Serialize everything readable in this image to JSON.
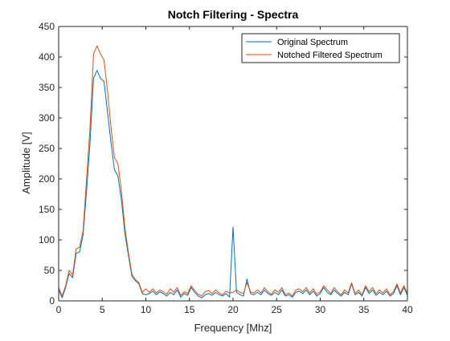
{
  "chart_data": {
    "type": "line",
    "title": "Notch Filtering - Spectra",
    "xlabel": "Frequency [Mhz]",
    "ylabel": "Amplitude [V]",
    "xlim": [
      0,
      40
    ],
    "ylim": [
      0,
      450
    ],
    "xticks": [
      0,
      5,
      10,
      15,
      20,
      25,
      30,
      35,
      40
    ],
    "yticks": [
      0,
      50,
      100,
      150,
      200,
      250,
      300,
      350,
      400,
      450
    ],
    "xtick_labels": [
      "0",
      "5",
      "10",
      "15",
      "20",
      "25",
      "30",
      "35",
      "40"
    ],
    "ytick_labels": [
      "0",
      "50",
      "100",
      "150",
      "200",
      "250",
      "300",
      "350",
      "400",
      "450"
    ],
    "grid": false,
    "legend_position": "top-right",
    "series": [
      {
        "name": "Original Spectrum",
        "color": "#0072BD",
        "x": [
          0,
          0.4,
          0.8,
          1.2,
          1.6,
          2.0,
          2.4,
          2.8,
          3.2,
          3.6,
          4.0,
          4.4,
          4.8,
          5.2,
          5.6,
          6.0,
          6.4,
          6.8,
          7.2,
          7.6,
          8.0,
          8.4,
          8.8,
          9.2,
          9.6,
          10.0,
          10.4,
          10.8,
          11.2,
          11.6,
          12.0,
          12.4,
          12.8,
          13.2,
          13.6,
          14.0,
          14.4,
          14.8,
          15.2,
          15.6,
          16.0,
          16.4,
          16.8,
          17.2,
          17.6,
          18.0,
          18.4,
          18.8,
          19.2,
          19.6,
          20.0,
          20.4,
          20.8,
          21.2,
          21.6,
          22.0,
          22.4,
          22.8,
          23.2,
          23.6,
          24.0,
          24.4,
          24.8,
          25.2,
          25.6,
          26.0,
          26.4,
          26.8,
          27.2,
          27.6,
          28.0,
          28.4,
          28.8,
          29.2,
          29.6,
          30.0,
          30.4,
          30.8,
          31.2,
          31.6,
          32.0,
          32.4,
          32.8,
          33.2,
          33.6,
          34.0,
          34.4,
          34.8,
          35.2,
          35.6,
          36.0,
          36.4,
          36.8,
          37.2,
          37.6,
          38.0,
          38.4,
          38.8,
          39.2,
          39.6,
          40.0
        ],
        "y": [
          18,
          5,
          22,
          45,
          38,
          78,
          80,
          108,
          180,
          260,
          365,
          378,
          365,
          360,
          310,
          260,
          215,
          205,
          165,
          110,
          75,
          40,
          33,
          28,
          12,
          10,
          12,
          16,
          10,
          15,
          12,
          8,
          14,
          10,
          18,
          6,
          12,
          9,
          22,
          14,
          8,
          5,
          10,
          12,
          9,
          14,
          10,
          8,
          12,
          6,
          121,
          14,
          10,
          8,
          36,
          12,
          10,
          14,
          10,
          18,
          12,
          9,
          14,
          10,
          18,
          8,
          10,
          6,
          14,
          16,
          12,
          18,
          10,
          16,
          8,
          12,
          22,
          14,
          10,
          18,
          12,
          8,
          14,
          10,
          28,
          10,
          14,
          8,
          22,
          12,
          18,
          9,
          14,
          10,
          16,
          8,
          12,
          25,
          10,
          22,
          9
        ]
      },
      {
        "name": "Notched Filtered Spectrum",
        "color": "#D95319",
        "x": [
          0,
          0.4,
          0.8,
          1.2,
          1.6,
          2.0,
          2.4,
          2.8,
          3.2,
          3.6,
          4.0,
          4.4,
          4.8,
          5.2,
          5.6,
          6.0,
          6.4,
          6.8,
          7.2,
          7.6,
          8.0,
          8.4,
          8.8,
          9.2,
          9.6,
          10.0,
          10.4,
          10.8,
          11.2,
          11.6,
          12.0,
          12.4,
          12.8,
          13.2,
          13.6,
          14.0,
          14.4,
          14.8,
          15.2,
          15.6,
          16.0,
          16.4,
          16.8,
          17.2,
          17.6,
          18.0,
          18.4,
          18.8,
          19.2,
          19.6,
          20.0,
          20.4,
          20.8,
          21.2,
          21.6,
          22.0,
          22.4,
          22.8,
          23.2,
          23.6,
          24.0,
          24.4,
          24.8,
          25.2,
          25.6,
          26.0,
          26.4,
          26.8,
          27.2,
          27.6,
          28.0,
          28.4,
          28.8,
          29.2,
          29.6,
          30.0,
          30.4,
          30.8,
          31.2,
          31.6,
          32.0,
          32.4,
          32.8,
          33.2,
          33.6,
          34.0,
          34.4,
          34.8,
          35.2,
          35.6,
          36.0,
          36.4,
          36.8,
          37.2,
          37.6,
          38.0,
          38.4,
          38.8,
          39.2,
          39.6,
          40.0
        ],
        "y": [
          22,
          8,
          25,
          50,
          42,
          85,
          88,
          115,
          200,
          285,
          405,
          418,
          405,
          395,
          345,
          285,
          235,
          225,
          180,
          120,
          80,
          44,
          35,
          30,
          14,
          20,
          14,
          20,
          13,
          18,
          15,
          11,
          20,
          14,
          22,
          9,
          15,
          12,
          25,
          17,
          11,
          8,
          15,
          17,
          12,
          18,
          13,
          10,
          16,
          13,
          14,
          18,
          14,
          12,
          30,
          15,
          13,
          18,
          13,
          22,
          15,
          11,
          18,
          14,
          22,
          10,
          13,
          8,
          18,
          20,
          15,
          22,
          13,
          20,
          11,
          15,
          25,
          18,
          12,
          22,
          15,
          10,
          18,
          13,
          30,
          12,
          18,
          10,
          25,
          15,
          22,
          12,
          18,
          13,
          20,
          10,
          15,
          28,
          13,
          25,
          12
        ]
      }
    ]
  }
}
